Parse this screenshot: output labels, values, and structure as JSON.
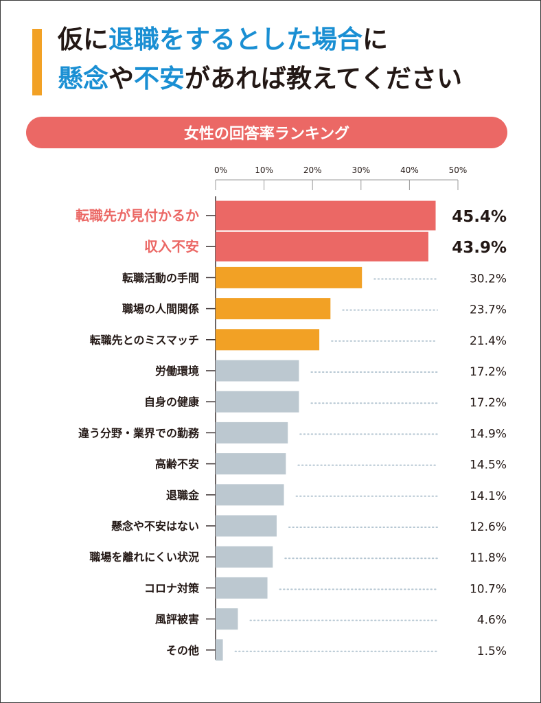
{
  "header": {
    "title_line1": [
      {
        "text": "仮に",
        "highlight": false
      },
      {
        "text": "退職をするとした場合",
        "highlight": true
      },
      {
        "text": "に",
        "highlight": false
      }
    ],
    "title_line2": [
      {
        "text": "懸念",
        "highlight": true
      },
      {
        "text": "や",
        "highlight": false
      },
      {
        "text": "不安",
        "highlight": true
      },
      {
        "text": "があれば教えてください",
        "highlight": false
      }
    ],
    "banner": "女性の回答率ランキング"
  },
  "colors": {
    "highlight_text": "#1a8fd3",
    "accent": "#f2a125",
    "top": "#eb6865",
    "mid": "#f2a125",
    "rest": "#bcc8d0",
    "dots": "#b5c6d2",
    "text": "#231815"
  },
  "chart_data": {
    "type": "bar",
    "orientation": "horizontal",
    "title": "女性の回答率ランキング",
    "xlabel": "",
    "ylabel": "",
    "xlim": [
      0,
      50
    ],
    "x_ticks": [
      "0%",
      "10%",
      "20%",
      "30%",
      "40%",
      "50%"
    ],
    "x_tick_values": [
      0,
      10,
      20,
      30,
      40,
      50
    ],
    "grid": false,
    "legend": "none",
    "categories": [
      "転職先が見付かるか",
      "収入不安",
      "転職活動の手間",
      "職場の人間関係",
      "転職先とのミスマッチ",
      "労働環境",
      "自身の健康",
      "違う分野・業界での勤務",
      "高齢不安",
      "退職金",
      "懸念や不安はない",
      "職場を離れにくい状況",
      "コロナ対策",
      "風評被害",
      "その他"
    ],
    "values": [
      45.4,
      43.9,
      30.2,
      23.7,
      21.4,
      17.2,
      17.2,
      14.9,
      14.5,
      14.1,
      12.6,
      11.8,
      10.7,
      4.6,
      1.5
    ],
    "value_labels": [
      "45.4%",
      "43.9%",
      "30.2%",
      "23.7%",
      "21.4%",
      "17.2%",
      "17.2%",
      "14.9%",
      "14.5%",
      "14.1%",
      "12.6%",
      "11.8%",
      "10.7%",
      "4.6%",
      "1.5%"
    ],
    "tiers": [
      "top",
      "top",
      "mid",
      "mid",
      "mid",
      "rest",
      "rest",
      "rest",
      "rest",
      "rest",
      "rest",
      "rest",
      "rest",
      "rest",
      "rest"
    ]
  }
}
